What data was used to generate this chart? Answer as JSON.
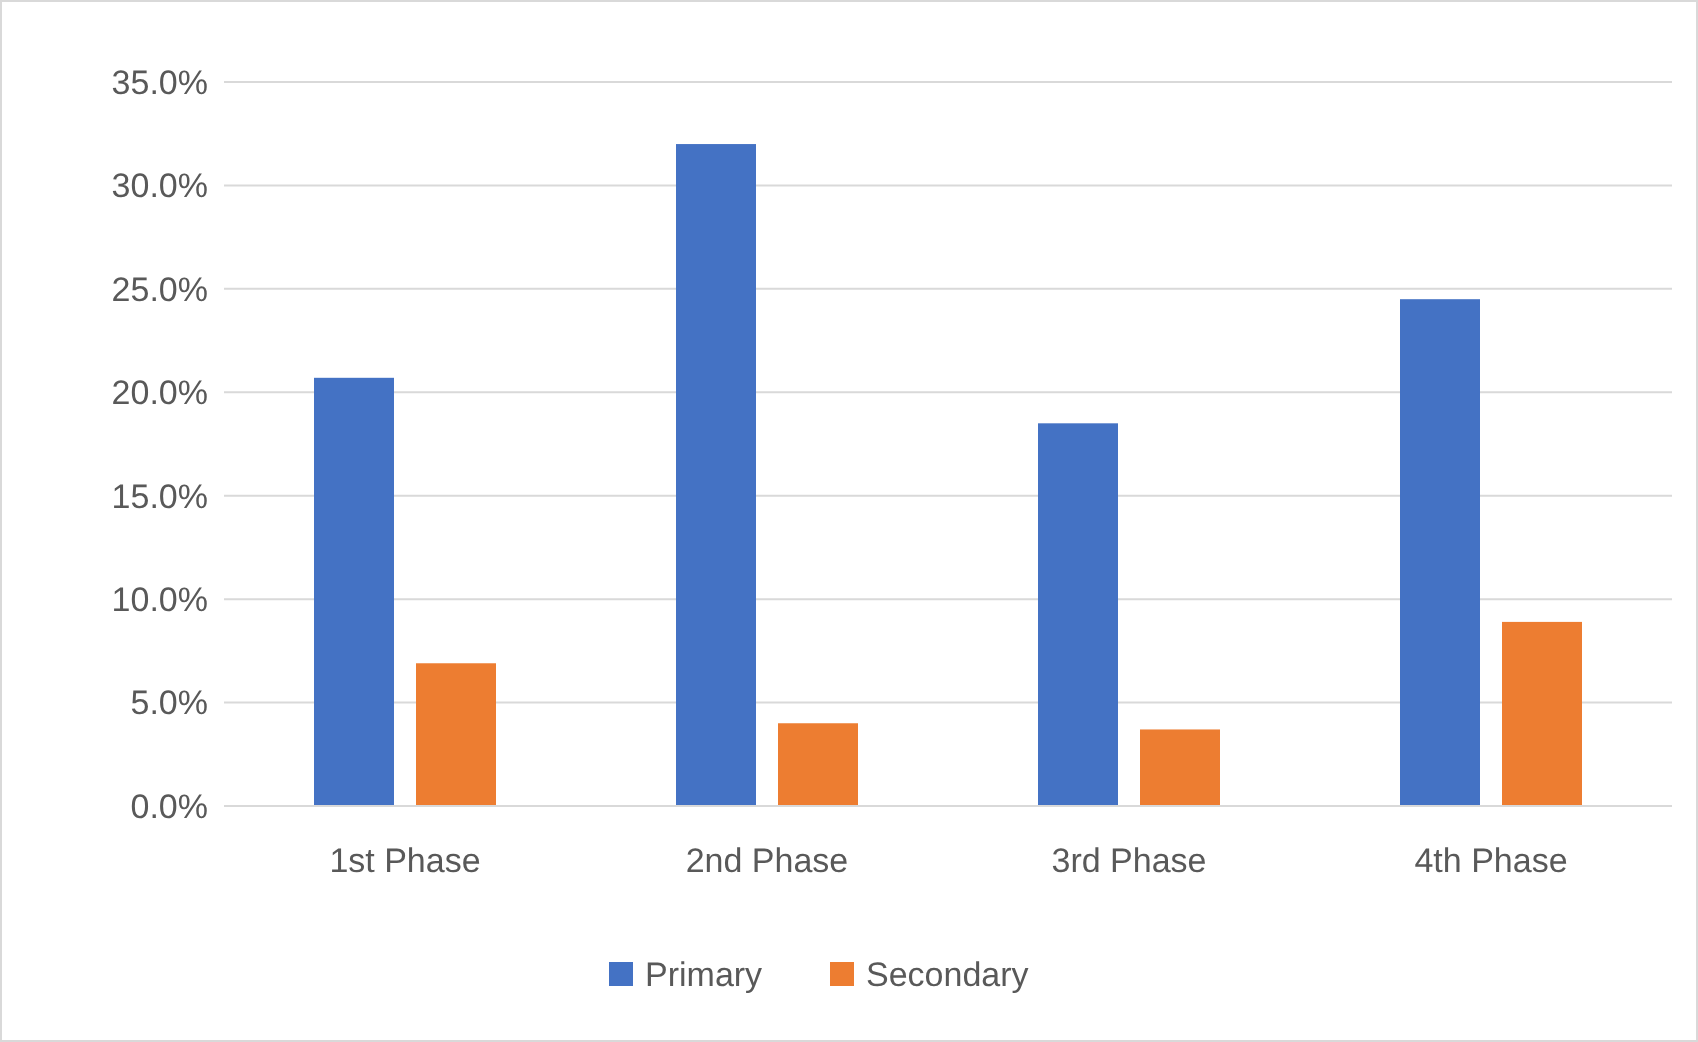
{
  "chart_data": {
    "type": "bar",
    "categories": [
      "1st Phase",
      "2nd Phase",
      "3rd Phase",
      "4th Phase"
    ],
    "series": [
      {
        "name": "Primary",
        "color": "#4472c4",
        "values": [
          20.7,
          32.0,
          18.5,
          24.5
        ]
      },
      {
        "name": "Secondary",
        "color": "#ed7d31",
        "values": [
          6.9,
          4.0,
          3.7,
          8.9
        ]
      }
    ],
    "ylim": [
      0,
      35
    ],
    "yticks": [
      {
        "value": 0,
        "label": "0.0%"
      },
      {
        "value": 5,
        "label": "5.0%"
      },
      {
        "value": 10,
        "label": "10.0%"
      },
      {
        "value": 15,
        "label": "15.0%"
      },
      {
        "value": 20,
        "label": "20.0%"
      },
      {
        "value": 25,
        "label": "25.0%"
      },
      {
        "value": 30,
        "label": "30.0%"
      },
      {
        "value": 35,
        "label": "35.0%"
      }
    ],
    "grid": "y",
    "legend": "bottom"
  }
}
